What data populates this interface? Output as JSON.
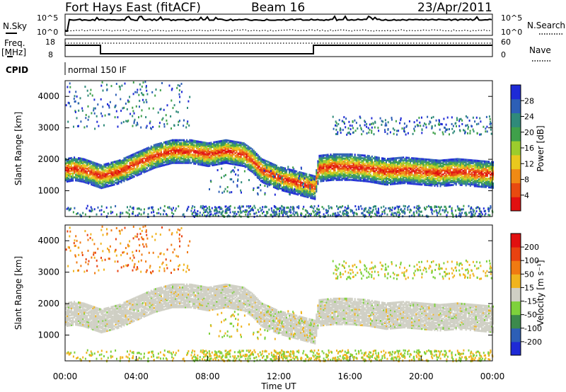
{
  "header": {
    "radar": "Fort Hays East (fitACF)",
    "beam": "Beam 16",
    "date": "23/Apr/2011"
  },
  "side_labels": {
    "nsky": "N.Sky",
    "nsearch": "N.Search",
    "freq_line1": "Freq.",
    "freq_line2": "[MHz]",
    "nave": "Nave",
    "cpid": "CPID",
    "cpid_value": "normal 150 IF"
  },
  "noise_panel": {
    "left_ticks": [
      "10^5",
      "10^0"
    ],
    "right_ticks": [
      "10^5",
      "10^0"
    ]
  },
  "freq_panel": {
    "left_ticks": [
      "18",
      "8"
    ],
    "right_ticks": [
      "60",
      "0"
    ]
  },
  "colors": {
    "power": [
      "#1e2ad6",
      "#2d5fb6",
      "#2f8a7a",
      "#3fa04a",
      "#9ccc2c",
      "#e8c81e",
      "#f08a14",
      "#e84a10",
      "#e11010"
    ],
    "velocity": [
      "#1e2ad6",
      "#2d5fb6",
      "#3c8a4c",
      "#7ed13c",
      "#cfcfc4",
      "#f0b41e",
      "#f07a12",
      "#e84210",
      "#e11010"
    ]
  },
  "chart_data": [
    {
      "type": "heatmap",
      "name": "power",
      "xlabel": "",
      "ylabel": "Slant Range [km]",
      "x_range_hours": [
        0,
        24
      ],
      "ylim": [
        180,
        4500
      ],
      "yticks": [
        1000,
        2000,
        3000,
        4000
      ],
      "colorbar": {
        "label": "Power [dB]",
        "ticks": [
          "28",
          "24",
          "20",
          "16",
          "12",
          "8",
          "4"
        ],
        "range": [
          0,
          32
        ]
      },
      "main_echo_band": {
        "hours": [
          0,
          0.5,
          1,
          1.5,
          2,
          3,
          4,
          5,
          6,
          7,
          8,
          9,
          10,
          10.5,
          11,
          12,
          13,
          14,
          14.2,
          15,
          16,
          17,
          18,
          19,
          20,
          21,
          22,
          23,
          24
        ],
        "range_km": [
          1700,
          1750,
          1700,
          1600,
          1500,
          1650,
          1900,
          2150,
          2300,
          2300,
          2200,
          2300,
          2200,
          2000,
          1700,
          1450,
          1300,
          1150,
          1750,
          1800,
          1800,
          1750,
          1650,
          1700,
          1650,
          1600,
          1650,
          1600,
          1550
        ]
      }
    },
    {
      "type": "heatmap",
      "name": "velocity",
      "xlabel": "Time UT",
      "ylabel": "Slant Range [km]",
      "x_range_hours": [
        0,
        24
      ],
      "ylim": [
        180,
        4500
      ],
      "yticks": [
        1000,
        2000,
        3000,
        4000
      ],
      "xticks": [
        "00:00",
        "04:00",
        "08:00",
        "12:00",
        "16:00",
        "20:00",
        "00:00"
      ],
      "colorbar": {
        "label": "Velocity [m s⁻¹]",
        "ticks": [
          "200",
          "100",
          "50",
          "15",
          "-15",
          "-50",
          "-100",
          "-200"
        ],
        "range": [
          -250,
          250
        ]
      }
    }
  ]
}
